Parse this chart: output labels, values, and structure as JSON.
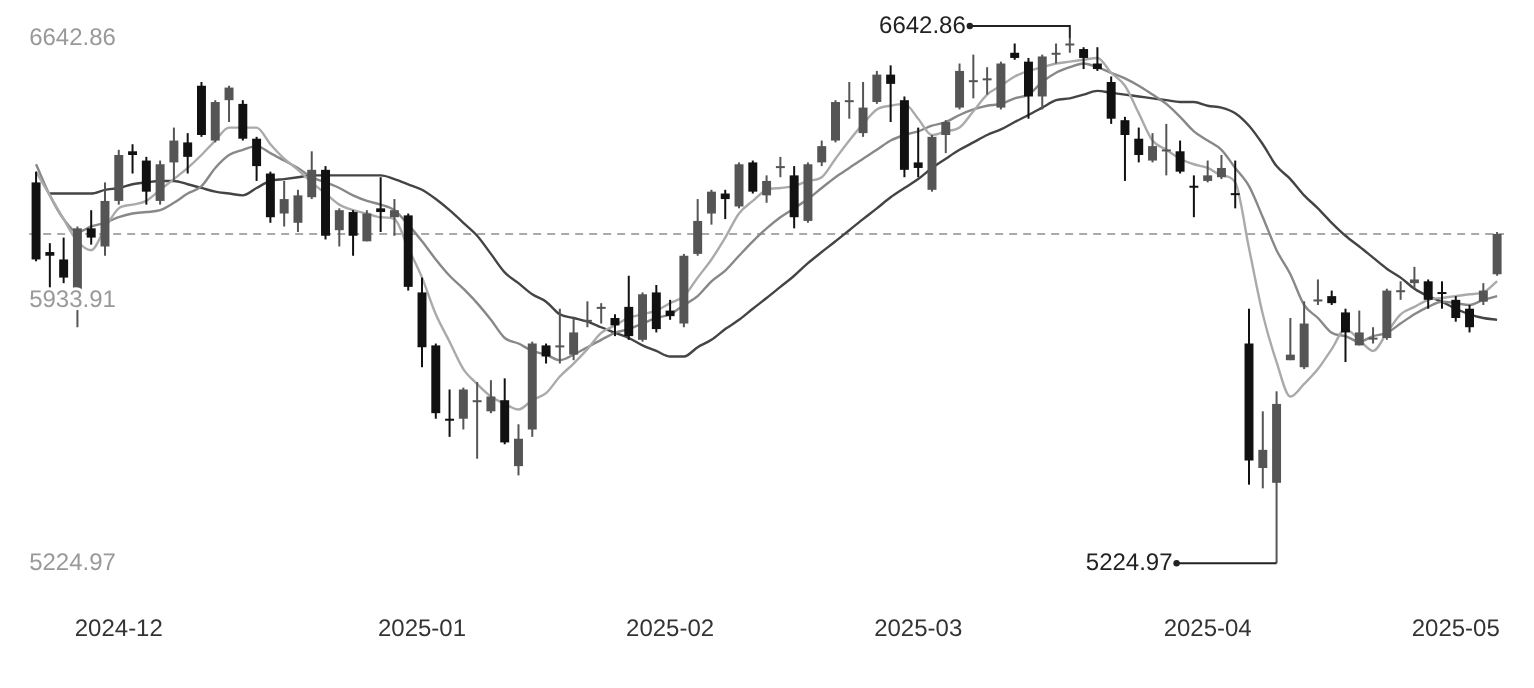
{
  "chart_data": {
    "type": "candlestick",
    "categories": [
      null,
      null,
      null,
      null,
      null,
      null,
      "2024-12",
      null,
      null,
      null,
      null,
      null,
      null,
      null,
      null,
      null,
      null,
      null,
      null,
      null,
      null,
      null,
      null,
      null,
      null,
      null,
      null,
      null,
      "2025-01",
      null,
      null,
      null,
      null,
      null,
      null,
      null,
      null,
      null,
      null,
      null,
      null,
      null,
      null,
      null,
      null,
      null,
      "2025-02",
      null,
      null,
      null,
      null,
      null,
      null,
      null,
      null,
      null,
      null,
      null,
      null,
      null,
      null,
      null,
      null,
      null,
      "2025-03",
      null,
      null,
      null,
      null,
      null,
      null,
      null,
      null,
      null,
      null,
      null,
      null,
      null,
      null,
      null,
      null,
      null,
      null,
      null,
      null,
      "2025-04",
      null,
      null,
      null,
      null,
      null,
      null,
      null,
      null,
      null,
      null,
      null,
      null,
      null,
      null,
      null,
      null,
      null,
      "2025-05",
      null,
      null,
      null
    ],
    "ylim": [
      5224.97,
      6642.86
    ],
    "yticks": [
      6642.86,
      5933.91,
      5224.97
    ],
    "series": [
      {
        "type": "line",
        "color": "#aaaaaa",
        "values": [
          6282,
          6218,
          6154,
          6094,
          6070,
          6129,
          6183,
          6193,
          6203,
          6233,
          6262,
          6292,
          6327,
          6366,
          6401,
          6401,
          6401,
          6356,
          6317,
          6287,
          6253,
          6223,
          6193,
          6178,
          6169,
          6159,
          6154,
          6075,
          5996,
          5897,
          5823,
          5749,
          5709,
          5675,
          5655,
          5640,
          5665,
          5684,
          5729,
          5764,
          5803,
          5847,
          5867,
          5887,
          5897,
          5907,
          5927,
          5946,
          5996,
          6045,
          6104,
          6169,
          6203,
          6233,
          6238,
          6243,
          6257,
          6267,
          6317,
          6366,
          6411,
          6450,
          6460,
          6465,
          6425,
          6381,
          6391,
          6401,
          6445,
          6490,
          6514,
          6539,
          6554,
          6564,
          6574,
          6579,
          6584,
          6589,
          6549,
          6514,
          6440,
          6366,
          6341,
          6317,
          6302,
          6292,
          6272,
          6253,
          6075,
          5897,
          5768,
          5675,
          5709,
          5749,
          5803,
          5857,
          5828,
          5798,
          5847,
          5897,
          5917,
          5936,
          5941,
          5946,
          5951,
          5956,
          5986
        ]
      },
      {
        "type": "line",
        "color": "#888888",
        "values": [
          6302,
          6218,
          6154,
          6119,
          6134,
          6144,
          6159,
          6169,
          6173,
          6178,
          6198,
          6223,
          6243,
          6292,
          6327,
          6341,
          6351,
          6332,
          6312,
          6292,
          6267,
          6253,
          6238,
          6218,
          6203,
          6193,
          6178,
          6139,
          6094,
          6045,
          6001,
          5966,
          5927,
          5882,
          5833,
          5818,
          5798,
          5788,
          5773,
          5788,
          5808,
          5828,
          5847,
          5857,
          5872,
          5887,
          5897,
          5922,
          5946,
          5986,
          6015,
          6055,
          6094,
          6129,
          6159,
          6183,
          6208,
          6238,
          6267,
          6292,
          6317,
          6341,
          6366,
          6381,
          6391,
          6406,
          6416,
          6435,
          6450,
          6460,
          6465,
          6480,
          6490,
          6524,
          6549,
          6564,
          6574,
          6564,
          6549,
          6534,
          6514,
          6490,
          6465,
          6430,
          6391,
          6366,
          6341,
          6292,
          6243,
          6159,
          6070,
          6005,
          5922,
          5887,
          5847,
          5838,
          5823,
          5838,
          5847,
          5872,
          5897,
          5917,
          5931,
          5927,
          5922,
          5936,
          5946
        ]
      },
      {
        "type": "line",
        "color": "#444444",
        "values": [
          null,
          6223,
          6223,
          6223,
          6223,
          6233,
          6238,
          6248,
          6253,
          6257,
          6257,
          6248,
          6238,
          6228,
          6223,
          6218,
          6238,
          6257,
          6262,
          6267,
          6272,
          6272,
          6272,
          6272,
          6272,
          6272,
          6262,
          6248,
          6233,
          6208,
          6178,
          6144,
          6109,
          6060,
          6010,
          5981,
          5951,
          5931,
          5897,
          5887,
          5877,
          5862,
          5847,
          5833,
          5813,
          5798,
          5783,
          5783,
          5808,
          5828,
          5857,
          5882,
          5912,
          5941,
          5971,
          6001,
          6035,
          6065,
          6094,
          6124,
          6154,
          6183,
          6213,
          6238,
          6262,
          6292,
          6317,
          6341,
          6361,
          6381,
          6396,
          6416,
          6435,
          6455,
          6475,
          6480,
          6490,
          6500,
          6495,
          6490,
          6485,
          6480,
          6475,
          6470,
          6470,
          6460,
          6455,
          6440,
          6406,
          6356,
          6297,
          6262,
          6218,
          6183,
          6144,
          6109,
          6080,
          6050,
          6020,
          5996,
          5966,
          5946,
          5931,
          5912,
          5897,
          5887,
          5882
        ]
      },
      {
        "colors": [
          "#111111",
          "#111111",
          "#111111",
          "#555555",
          "#111111",
          "#555555",
          "#555555",
          "#111111",
          "#111111",
          "#555555",
          "#555555",
          "#111111",
          "#111111",
          "#555555",
          "#555555",
          "#111111",
          "#111111",
          "#111111",
          "#555555",
          "#555555",
          "#555555",
          "#111111",
          "#555555",
          "#111111",
          "#555555",
          "#111111",
          "#555555",
          "#111111",
          "#111111",
          "#111111",
          "#111111",
          "#555555",
          "#555555",
          "#555555",
          "#111111",
          "#555555",
          "#555555",
          "#111111",
          "#555555",
          "#555555",
          "#555555",
          "#555555",
          "#111111",
          "#111111",
          "#555555",
          "#111111",
          "#111111",
          "#555555",
          "#555555",
          "#555555",
          "#111111",
          "#555555",
          "#111111",
          "#555555",
          "#555555",
          "#111111",
          "#555555",
          "#555555",
          "#555555",
          "#555555",
          "#555555",
          "#555555",
          "#111111",
          "#111111",
          "#111111",
          "#555555",
          "#555555",
          "#555555",
          "#555555",
          "#555555",
          "#555555",
          "#111111",
          "#111111",
          "#555555",
          "#555555",
          "#555555",
          "#111111",
          "#111111",
          "#111111",
          "#111111",
          "#111111",
          "#555555",
          "#555555",
          "#111111",
          "#111111",
          "#555555",
          "#555555",
          "#111111",
          "#111111",
          "#555555",
          "#555555",
          "#555555",
          "#555555",
          "#555555",
          "#111111",
          "#111111",
          "#555555",
          "#555555",
          "#555555",
          "#555555",
          "#555555",
          "#111111",
          "#111111",
          "#111111",
          "#111111",
          "#555555",
          "#555555"
        ],
        "ohlc": [
          [
            6253,
            6282,
            6040,
            6045
          ],
          [
            6065,
            6089,
            5961,
            6055
          ],
          [
            6045,
            6104,
            5981,
            5996
          ],
          [
            5912,
            6134,
            5862,
            6129
          ],
          [
            6129,
            6178,
            6085,
            6104
          ],
          [
            6080,
            6253,
            6055,
            6203
          ],
          [
            6203,
            6341,
            6193,
            6327
          ],
          [
            6337,
            6356,
            6277,
            6327
          ],
          [
            6312,
            6322,
            6193,
            6228
          ],
          [
            6203,
            6312,
            6193,
            6302
          ],
          [
            6307,
            6401,
            6257,
            6366
          ],
          [
            6361,
            6386,
            6277,
            6322
          ],
          [
            6514,
            6524,
            6376,
            6381
          ],
          [
            6366,
            6475,
            6361,
            6470
          ],
          [
            6475,
            6514,
            6416,
            6509
          ],
          [
            6465,
            6475,
            6366,
            6371
          ],
          [
            6371,
            6376,
            6257,
            6297
          ],
          [
            6277,
            6282,
            6144,
            6159
          ],
          [
            6169,
            6257,
            6134,
            6208
          ],
          [
            6144,
            6233,
            6119,
            6218
          ],
          [
            6213,
            6337,
            6208,
            6287
          ],
          [
            6287,
            6297,
            6099,
            6109
          ],
          [
            6124,
            6183,
            6080,
            6178
          ],
          [
            6173,
            6178,
            6055,
            6109
          ],
          [
            6094,
            6178,
            6094,
            6169
          ],
          [
            6183,
            6267,
            6119,
            6173
          ],
          [
            6159,
            6208,
            6109,
            6178
          ],
          [
            6164,
            6169,
            5961,
            5971
          ],
          [
            5956,
            5996,
            5754,
            5808
          ],
          [
            5813,
            5818,
            5615,
            5630
          ],
          [
            5615,
            5694,
            5566,
            5610
          ],
          [
            5615,
            5699,
            5586,
            5694
          ],
          [
            5663,
            5714,
            5507,
            5665
          ],
          [
            5635,
            5719,
            5630,
            5675
          ],
          [
            5665,
            5724,
            5546,
            5551
          ],
          [
            5487,
            5600,
            5462,
            5561
          ],
          [
            5586,
            5823,
            5566,
            5818
          ],
          [
            5813,
            5818,
            5764,
            5783
          ],
          [
            5811,
            5912,
            5764,
            5813
          ],
          [
            5788,
            5887,
            5773,
            5848
          ],
          [
            5880,
            5932,
            5862,
            5882
          ],
          [
            5915,
            5927,
            5872,
            5917
          ],
          [
            5887,
            5897,
            5838,
            5867
          ],
          [
            5917,
            6001,
            5828,
            5838
          ],
          [
            5828,
            5956,
            5823,
            5951
          ],
          [
            5956,
            5976,
            5848,
            5857
          ],
          [
            5907,
            5936,
            5882,
            5892
          ],
          [
            5872,
            6060,
            5862,
            6055
          ],
          [
            6060,
            6208,
            6055,
            6149
          ],
          [
            6169,
            6233,
            6139,
            6228
          ],
          [
            6223,
            6233,
            6154,
            6208
          ],
          [
            6188,
            6307,
            6183,
            6302
          ],
          [
            6307,
            6312,
            6223,
            6228
          ],
          [
            6218,
            6272,
            6198,
            6257
          ],
          [
            6295,
            6322,
            6267,
            6297
          ],
          [
            6272,
            6297,
            6129,
            6159
          ],
          [
            6149,
            6307,
            6144,
            6302
          ],
          [
            6307,
            6366,
            6297,
            6351
          ],
          [
            6366,
            6475,
            6361,
            6470
          ],
          [
            6473,
            6524,
            6425,
            6475
          ],
          [
            6386,
            6524,
            6376,
            6455
          ],
          [
            6470,
            6554,
            6465,
            6544
          ],
          [
            6544,
            6569,
            6416,
            6519
          ],
          [
            6475,
            6485,
            6267,
            6287
          ],
          [
            6307,
            6401,
            6267,
            6292
          ],
          [
            6233,
            6381,
            6228,
            6376
          ],
          [
            6381,
            6421,
            6332,
            6416
          ],
          [
            6455,
            6574,
            6450,
            6554
          ],
          [
            6527,
            6598,
            6480,
            6529
          ],
          [
            6532,
            6564,
            6490,
            6534
          ],
          [
            6455,
            6579,
            6450,
            6574
          ],
          [
            6603,
            6628,
            6584,
            6589
          ],
          [
            6579,
            6589,
            6425,
            6485
          ],
          [
            6485,
            6598,
            6450,
            6593
          ],
          [
            6601,
            6628,
            6574,
            6603
          ],
          [
            6626,
            6642.86,
            6603,
            6628
          ],
          [
            6613,
            6618,
            6559,
            6589
          ],
          [
            6574,
            6618,
            6554,
            6559
          ],
          [
            6524,
            6539,
            6411,
            6425
          ],
          [
            6421,
            6430,
            6257,
            6381
          ],
          [
            6371,
            6401,
            6307,
            6327
          ],
          [
            6312,
            6386,
            6307,
            6351
          ],
          [
            6340,
            6411,
            6272,
            6342
          ],
          [
            6337,
            6366,
            6277,
            6282
          ],
          [
            6244,
            6272,
            6159,
            6242
          ],
          [
            6257,
            6312,
            6253,
            6272
          ],
          [
            6267,
            6327,
            6262,
            6292
          ],
          [
            6224,
            6312,
            6183,
            6222
          ],
          [
            5818,
            5912,
            5437,
            5502
          ],
          [
            5482,
            5635,
            5427,
            5531
          ],
          [
            5442,
            5689,
            5224.97,
            5655
          ],
          [
            5773,
            5887,
            5773,
            5788
          ],
          [
            5754,
            5932,
            5749,
            5872
          ],
          [
            5935,
            5991,
            5922,
            5937
          ],
          [
            5946,
            5961,
            5922,
            5927
          ],
          [
            5902,
            5912,
            5768,
            5848
          ],
          [
            5813,
            5907,
            5813,
            5848
          ],
          [
            5832,
            5862,
            5818,
            5834
          ],
          [
            5833,
            5966,
            5828,
            5961
          ],
          [
            5960,
            5986,
            5936,
            5962
          ],
          [
            5981,
            6025,
            5966,
            5991
          ],
          [
            5986,
            5991,
            5912,
            5936
          ],
          [
            5957,
            5986,
            5912,
            5955
          ],
          [
            5936,
            5946,
            5877,
            5887
          ],
          [
            5912,
            5922,
            5848,
            5862
          ],
          [
            5931,
            5981,
            5922,
            5961
          ],
          [
            6005,
            6119,
            6001,
            6114
          ]
        ]
      }
    ],
    "ref_lines": [
      {
        "axis": "y",
        "value": 6114,
        "color": "#aaaaaa",
        "line_style": "dashed"
      }
    ],
    "annotations": [
      "6642.86",
      "5224.97"
    ]
  }
}
